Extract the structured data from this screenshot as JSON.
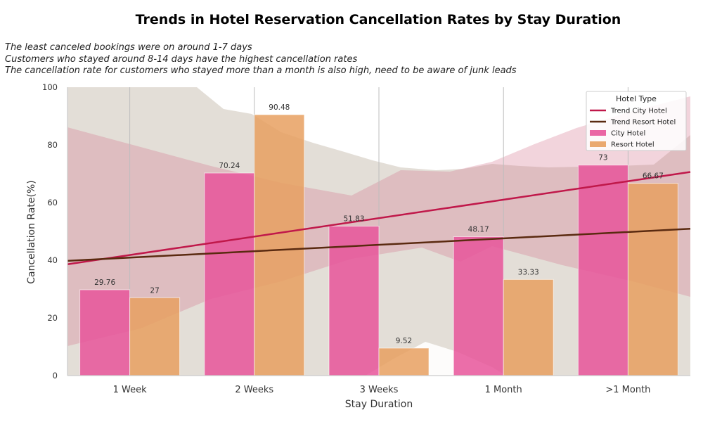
{
  "chart_data": {
    "type": "bar",
    "title": "Trends in Hotel Reservation Cancellation Rates by Stay Duration",
    "annotations": [
      "The least canceled bookings were on around 1-7 days",
      "Customers who stayed around 8-14 days have the highest cancellation rates",
      "The cancellation rate for customers who stayed more than a month is also high, need to be aware of junk leads"
    ],
    "xlabel": "Stay Duration",
    "ylabel": "Cancellation Rate(%)",
    "ylim": [
      0,
      100
    ],
    "yticks": [
      0,
      20,
      40,
      60,
      80,
      100
    ],
    "categories": [
      "1 Week",
      "2 Weeks",
      "3 Weeks",
      "1 Month",
      ">1 Month"
    ],
    "series": [
      {
        "name": "City Hotel",
        "values": [
          29.76,
          70.24,
          51.83,
          48.17,
          73
        ],
        "labels": [
          "29.76",
          "70.24",
          "51.83",
          "48.17",
          "73"
        ],
        "color": "#e8559a"
      },
      {
        "name": "Resort Hotel",
        "values": [
          27,
          90.48,
          9.52,
          33.33,
          66.67
        ],
        "labels": [
          "27",
          "90.48",
          "9.52",
          "33.33",
          "66.67"
        ],
        "color": "#e8a060"
      }
    ],
    "trend_lines": [
      {
        "name": "Trend City Hotel",
        "start": 38.6,
        "end": 70.6,
        "color": "#c0184a"
      },
      {
        "name": "Trend Resort Hotel",
        "start": 39.8,
        "end": 50.9,
        "color": "#5a2a10"
      }
    ],
    "legend": {
      "title": "Hotel Type",
      "placement": "top-right"
    },
    "grid": {
      "x": true,
      "y": false
    }
  }
}
